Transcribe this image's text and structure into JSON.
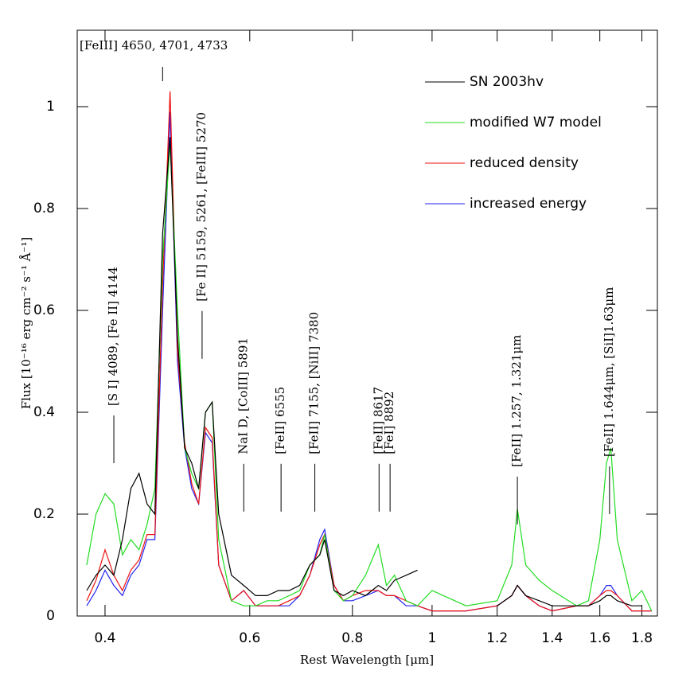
{
  "chart_data": {
    "type": "line",
    "xlabel": "Rest Wavelength [μm]",
    "ylabel": "Flux [10⁻¹⁶ erg cm⁻² s⁻¹ Å⁻¹]",
    "xscale": "log",
    "xlim": [
      0.37,
      1.88
    ],
    "ylim": [
      0,
      1.15
    ],
    "xticks": [
      0.4,
      0.6,
      0.8,
      1,
      1.2,
      1.4,
      1.6,
      1.8
    ],
    "yticks": [
      0,
      0.2,
      0.4,
      0.6,
      0.8,
      1
    ],
    "legend": "upper right",
    "x": [
      0.38,
      0.39,
      0.4,
      0.41,
      0.42,
      0.43,
      0.44,
      0.45,
      0.46,
      0.47,
      0.48,
      0.49,
      0.5,
      0.51,
      0.52,
      0.53,
      0.54,
      0.55,
      0.57,
      0.59,
      0.61,
      0.63,
      0.65,
      0.67,
      0.69,
      0.71,
      0.73,
      0.74,
      0.76,
      0.78,
      0.8,
      0.83,
      0.86,
      0.88,
      0.9,
      0.93,
      0.96,
      1.0,
      1.1,
      1.2,
      1.25,
      1.27,
      1.3,
      1.35,
      1.4,
      1.5,
      1.55,
      1.6,
      1.63,
      1.65,
      1.68,
      1.75,
      1.8,
      1.85
    ],
    "series": [
      {
        "name": "SN 2003hv",
        "color": "#000000",
        "values": [
          0.05,
          0.08,
          0.1,
          0.08,
          0.15,
          0.25,
          0.28,
          0.22,
          0.2,
          0.75,
          0.94,
          0.55,
          0.33,
          0.3,
          0.25,
          0.4,
          0.42,
          0.2,
          0.08,
          0.06,
          0.04,
          0.04,
          0.05,
          0.05,
          0.06,
          0.1,
          0.12,
          0.15,
          0.05,
          0.04,
          0.05,
          0.04,
          0.06,
          0.05,
          0.07,
          0.08,
          0.09,
          null,
          null,
          0.02,
          0.04,
          0.06,
          0.04,
          0.03,
          0.02,
          0.02,
          0.02,
          0.03,
          0.04,
          0.04,
          0.03,
          0.02,
          0.02,
          null
        ]
      },
      {
        "name": "modified W7 model",
        "color": "#22dd22",
        "values": [
          0.1,
          0.2,
          0.24,
          0.22,
          0.12,
          0.15,
          0.13,
          0.18,
          0.25,
          0.7,
          0.93,
          0.6,
          0.33,
          0.28,
          0.25,
          0.4,
          0.42,
          0.15,
          0.03,
          0.02,
          0.02,
          0.03,
          0.03,
          0.04,
          0.05,
          0.1,
          0.12,
          0.16,
          0.05,
          0.03,
          0.04,
          0.08,
          0.14,
          0.06,
          0.08,
          0.03,
          0.02,
          0.05,
          0.02,
          0.03,
          0.1,
          0.21,
          0.1,
          0.07,
          0.05,
          0.02,
          0.03,
          0.15,
          0.3,
          0.33,
          0.15,
          0.03,
          0.05,
          0.01
        ]
      },
      {
        "name": "reduced density",
        "color": "#ee1111",
        "values": [
          0.03,
          0.07,
          0.13,
          0.08,
          0.05,
          0.09,
          0.11,
          0.16,
          0.16,
          0.65,
          1.03,
          0.52,
          0.34,
          0.26,
          0.22,
          0.37,
          0.35,
          0.1,
          0.03,
          0.05,
          0.02,
          0.02,
          0.02,
          0.03,
          0.04,
          0.08,
          0.14,
          0.16,
          0.06,
          0.03,
          0.04,
          0.05,
          0.05,
          0.04,
          0.04,
          0.03,
          0.02,
          0.01,
          0.01,
          0.02,
          0.04,
          0.06,
          0.04,
          0.02,
          0.01,
          0.02,
          0.02,
          0.04,
          0.05,
          0.05,
          0.04,
          0.01,
          0.01,
          0.01
        ]
      },
      {
        "name": "increased energy",
        "color": "#2222ee",
        "values": [
          0.02,
          0.05,
          0.09,
          0.06,
          0.04,
          0.08,
          0.1,
          0.15,
          0.15,
          0.6,
          0.99,
          0.5,
          0.33,
          0.25,
          0.22,
          0.36,
          0.34,
          0.1,
          0.03,
          0.05,
          0.02,
          0.02,
          0.02,
          0.02,
          0.04,
          0.08,
          0.15,
          0.17,
          0.06,
          0.03,
          0.03,
          0.04,
          0.05,
          0.04,
          0.04,
          0.02,
          0.02,
          0.01,
          0.01,
          0.02,
          0.04,
          0.06,
          0.04,
          0.02,
          0.01,
          0.02,
          0.02,
          0.04,
          0.06,
          0.06,
          0.04,
          0.01,
          0.01,
          0.01
        ]
      }
    ],
    "annotations": [
      {
        "text": "[FeIII] 4650, 4701, 4733",
        "x": 0.47,
        "y": 1.05
      },
      {
        "text": "[S I] 4089, [Fe II] 4144",
        "x": 0.41,
        "y": 0.3
      },
      {
        "text": "[Fe II] 5159, 5261, [FeIII] 5270",
        "x": 0.525,
        "y": 0.505
      },
      {
        "text": "NaI D, [CoIII] 5891",
        "x": 0.59,
        "y": 0.205
      },
      {
        "text": "[FeII] 6555",
        "x": 0.655,
        "y": 0.205
      },
      {
        "text": "[FeII] 7155, [NiII] 7380",
        "x": 0.72,
        "y": 0.205
      },
      {
        "text": "[FeII] 8617",
        "x": 0.862,
        "y": 0.205
      },
      {
        "text": "[FeI] 8892",
        "x": 0.889,
        "y": 0.205
      },
      {
        "text": "[FeII] 1.257, 1.321μm",
        "x": 1.27,
        "y": 0.18
      },
      {
        "text": "[FeII] 1.644μm, [SiI]1.63μm",
        "x": 1.644,
        "y": 0.2
      }
    ]
  }
}
